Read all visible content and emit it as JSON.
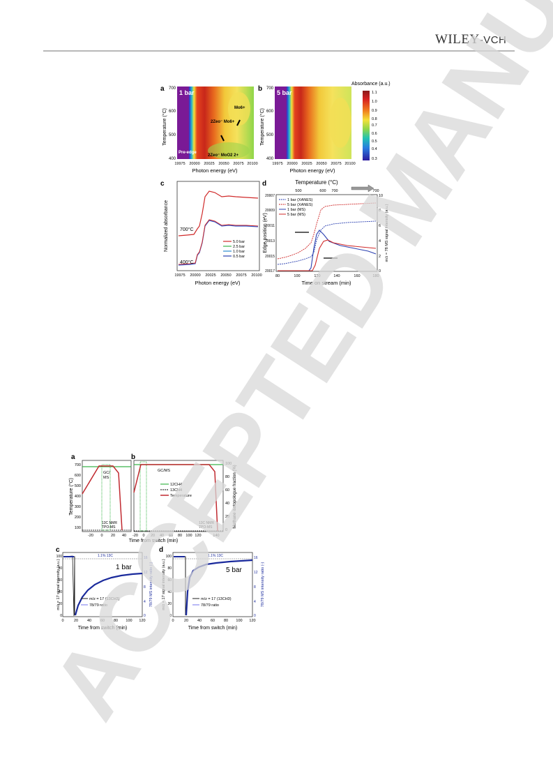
{
  "header": {
    "publisher_main": "WILEY",
    "publisher_sub": "-VCH"
  },
  "watermark": {
    "text": "ACCEPTED MANUSCRIPT"
  },
  "figure1": {
    "colorbar_title": "Absorbance (a.u.)",
    "colorbar_ticks": [
      "1.1",
      "1.0",
      "0.9",
      "0.8",
      "0.7",
      "0.6",
      "0.5",
      "0.4",
      "0.3"
    ],
    "panel_a": {
      "letter": "a",
      "pressure": "1 bar",
      "ylabel": "Temperature (°C)",
      "xlabel": "Photon energy (eV)",
      "yticks": [
        "700",
        "600",
        "500",
        "400"
      ],
      "xticks": [
        "19975",
        "20000",
        "20025",
        "20050",
        "20075",
        "20100"
      ],
      "annotations": {
        "mo6": "Mo6+",
        "zeomo6": "2Zeo⁻ Mo6+",
        "zeomoo2": "2Zeo⁻ MoO2 2+",
        "preedge": "Pre-edge"
      }
    },
    "panel_b": {
      "letter": "b",
      "pressure": "5 bar",
      "ylabel": "Temperature (°C)",
      "xlabel": "Photon energy (eV)",
      "yticks": [
        "700",
        "600",
        "500",
        "400"
      ],
      "xticks": [
        "19975",
        "20000",
        "20025",
        "20050",
        "20075",
        "20100"
      ]
    },
    "panel_c": {
      "letter": "c",
      "ylabel": "Normalized absorbance",
      "xlabel": "Photon energy (eV)",
      "xticks": [
        "19975",
        "20000",
        "20025",
        "20050",
        "20075",
        "20100"
      ],
      "label_700": "700°C",
      "label_400": "400°C",
      "legend": [
        "5.0 bar",
        "2.5 bar",
        "1.0 bar",
        "0.5 bar"
      ]
    },
    "panel_d": {
      "letter": "d",
      "top_axis_label": "Temperature (°C)",
      "top_ticks": [
        "500",
        "600",
        "700"
      ],
      "top_end": "700",
      "ylabel_left": "Edge position (eV)",
      "ylabel_right": "m/z = 78 MS signal intensity (a.u.)",
      "xlabel": "Time on stream (min)",
      "yticks_left": [
        "20007",
        "20009",
        "20011",
        "20013",
        "20015",
        "20017"
      ],
      "yticks_right": [
        "10",
        "8",
        "6",
        "4",
        "2",
        "0"
      ],
      "xticks": [
        "80",
        "100",
        "120",
        "140",
        "160",
        "180"
      ],
      "legend": [
        "1 bar (XANES)",
        "5 bar (XANES)",
        "1 bar (MS)",
        "5 bar (MS)"
      ]
    }
  },
  "figure2": {
    "panel_a": {
      "letter": "a",
      "ylabel": "Temperature (°C)",
      "yticks": [
        "700",
        "600",
        "500",
        "400",
        "300",
        "200",
        "100"
      ],
      "xticks": [
        "-20",
        "0",
        "20",
        "40"
      ],
      "gcms": "GC/",
      "gcms2": "MS",
      "nmr": "13C NMR",
      "tpo": "TPO-MS"
    },
    "panel_b": {
      "letter": "b",
      "ylabel_right": "Methane isotopologue fraction (%)",
      "yticks_right": [
        "100",
        "80",
        "60",
        "40",
        "20",
        "0"
      ],
      "xticks": [
        "-20",
        "0",
        "20",
        "40",
        "60",
        "80",
        "100",
        "120",
        "140"
      ],
      "gcms": "GC/MS",
      "nmr": "13C NMR",
      "tpo": "TPO-MS",
      "legend": [
        "12CH4",
        "13CH4",
        "Temperature"
      ]
    },
    "shared_xlabel": "Time from switch (min)",
    "panel_c": {
      "letter": "c",
      "pressure": "1 bar",
      "ylabel_left": "m/z = 17 signal intensity (a.u.)",
      "ylabel_right": "78/79 MS intensity ratio (-)",
      "yticks_left": [
        "100",
        "80",
        "60",
        "40",
        "20",
        "0"
      ],
      "yticks_right": [
        "16",
        "12",
        "8",
        "4",
        "0"
      ],
      "xticks": [
        "0",
        "20",
        "40",
        "60",
        "80",
        "100",
        "120"
      ],
      "ratio_label": "1.1% 13C",
      "legend": [
        "m/z = 17 (13CH3)",
        "78/79 ratio"
      ],
      "xlabel": "Time from switch (min)"
    },
    "panel_d": {
      "letter": "d",
      "pressure": "5 bar",
      "ylabel_left": "m/z = 17 signal intensity (a.u.)",
      "ylabel_right": "78/79 MS intensity ratio (-)",
      "yticks_left": [
        "100",
        "80",
        "60",
        "40",
        "20",
        "0"
      ],
      "yticks_right": [
        "16",
        "12",
        "8",
        "4",
        "0"
      ],
      "xticks": [
        "0",
        "20",
        "40",
        "60",
        "80",
        "100",
        "120"
      ],
      "ratio_label": "1.1% 13C",
      "legend": [
        "m/z = 17 (13CH3)",
        "78/79 ratio"
      ],
      "xlabel": "Time from switch (min)"
    }
  }
}
